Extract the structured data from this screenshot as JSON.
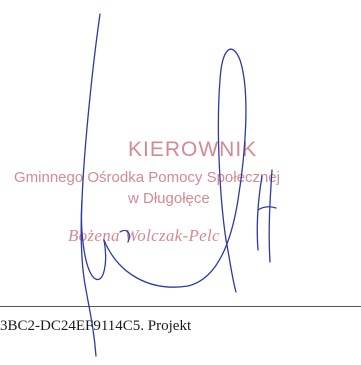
{
  "stamp": {
    "title": "KIEROWNIK",
    "organization": "Gminnego Ośrodka Pomocy Społecznej",
    "place": "w Długołęce",
    "person": "Bożena Wolczak-Pelc"
  },
  "footer": {
    "text": "3BC2-DC24EF9114C5. Projekt"
  },
  "colors": {
    "stamp": "#d38a93",
    "ink": "#2b3aa8",
    "text": "#1a1a1a"
  }
}
